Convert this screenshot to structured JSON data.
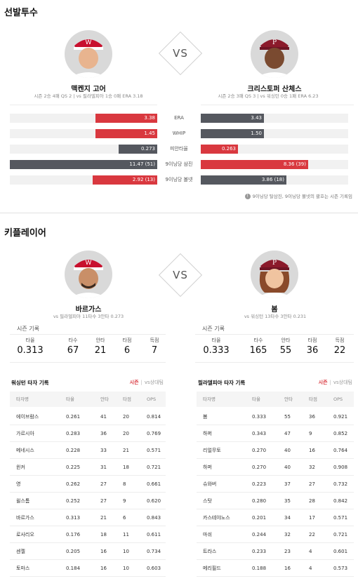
{
  "sections": {
    "pitchers_title": "선발투수",
    "key_players_title": "키플레이어"
  },
  "pitchers": {
    "vs": "VS",
    "left": {
      "name": "맥켄지 고어",
      "sub": "시즌 2승 4패 QS 2 | vs 필라델피아 1승 0패 ERA 3.18",
      "team_color": "#c8102e"
    },
    "right": {
      "name": "크리스토퍼 산체스",
      "sub": "시즌 2승 3패 QS 3 | vs 워싱턴 0승 1패 ERA 6.23",
      "team_color": "#e81828"
    },
    "stats": [
      {
        "label": "ERA",
        "left": "3.38",
        "right": "3.43",
        "left_color": "#d9383f",
        "right_color": "#55585f",
        "left_frac": 0.42,
        "right_frac": 0.43
      },
      {
        "label": "WHIP",
        "left": "1.45",
        "right": "1.50",
        "left_color": "#d9383f",
        "right_color": "#55585f",
        "left_frac": 0.42,
        "right_frac": 0.43
      },
      {
        "label": "피안타율",
        "left": "0.273",
        "right": "0.263",
        "left_color": "#55585f",
        "right_color": "#d9383f",
        "left_frac": 0.26,
        "right_frac": 0.25
      },
      {
        "label": "9이닝당 삼진",
        "left": "11.47 (51)",
        "right": "8.36 (39)",
        "left_color": "#55585f",
        "right_color": "#d9383f",
        "left_frac": 1.0,
        "right_frac": 0.73
      },
      {
        "label": "9이닝당 볼넷",
        "left": "2.92 (13)",
        "right": "3.86 (18)",
        "left_color": "#d9383f",
        "right_color": "#55585f",
        "left_frac": 0.44,
        "right_frac": 0.58
      }
    ],
    "footnote": "9이닝당 탈삼진, 9이닝당 볼넷의 괄호는 시즌 기록임"
  },
  "key_players": {
    "vs": "VS",
    "left": {
      "name": "바르가스",
      "sub": "vs 필라델피아 11타수 3안타 0.273",
      "season_title": "시즌 기록",
      "stats": [
        {
          "label": "타율",
          "value": "0.313"
        },
        {
          "label": "타수",
          "value": "67"
        },
        {
          "label": "안타",
          "value": "21"
        },
        {
          "label": "타점",
          "value": "6"
        },
        {
          "label": "득점",
          "value": "7"
        }
      ]
    },
    "right": {
      "name": "봄",
      "sub": "vs 워싱턴 13타수 3안타 0.231",
      "season_title": "시즌 기록",
      "stats": [
        {
          "label": "타율",
          "value": "0.333"
        },
        {
          "label": "타수",
          "value": "165"
        },
        {
          "label": "안타",
          "value": "55"
        },
        {
          "label": "타점",
          "value": "36"
        },
        {
          "label": "득점",
          "value": "22"
        }
      ]
    }
  },
  "team_tables": {
    "columns": [
      "타자명",
      "타율",
      "안타",
      "타점",
      "OPS"
    ],
    "tab_season": "시즌",
    "tab_vs": "vs상대팀",
    "left": {
      "title": "워싱턴 타자 기록",
      "rows": [
        [
          "에이브람스",
          "0.261",
          "41",
          "20",
          "0.814"
        ],
        [
          "가르시아",
          "0.283",
          "36",
          "20",
          "0.769"
        ],
        [
          "메네시스",
          "0.228",
          "33",
          "21",
          "0.571"
        ],
        [
          "윈커",
          "0.225",
          "31",
          "18",
          "0.721"
        ],
        [
          "영",
          "0.262",
          "27",
          "8",
          "0.661"
        ],
        [
          "윌스톰",
          "0.252",
          "27",
          "9",
          "0.620"
        ],
        [
          "바르가스",
          "0.313",
          "21",
          "6",
          "0.843"
        ],
        [
          "로사리오",
          "0.176",
          "18",
          "11",
          "0.611"
        ],
        [
          "센젤",
          "0.205",
          "16",
          "10",
          "0.734"
        ],
        [
          "토마스",
          "0.184",
          "16",
          "10",
          "0.603"
        ]
      ]
    },
    "right": {
      "title": "필라델피아 타자 기록",
      "rows": [
        [
          "봄",
          "0.333",
          "55",
          "36",
          "0.921"
        ],
        [
          "하퍼",
          "0.343",
          "47",
          "9",
          "0.852"
        ],
        [
          "리얼무토",
          "0.270",
          "40",
          "16",
          "0.764"
        ],
        [
          "하퍼",
          "0.270",
          "40",
          "32",
          "0.908"
        ],
        [
          "슈와버",
          "0.223",
          "37",
          "27",
          "0.732"
        ],
        [
          "스탓",
          "0.280",
          "35",
          "28",
          "0.842"
        ],
        [
          "카스테야노스",
          "0.201",
          "34",
          "17",
          "0.571"
        ],
        [
          "마쉬",
          "0.244",
          "32",
          "22",
          "0.721"
        ],
        [
          "트라스",
          "0.233",
          "23",
          "4",
          "0.601"
        ],
        [
          "메리필드",
          "0.188",
          "16",
          "4",
          "0.573"
        ]
      ]
    }
  }
}
